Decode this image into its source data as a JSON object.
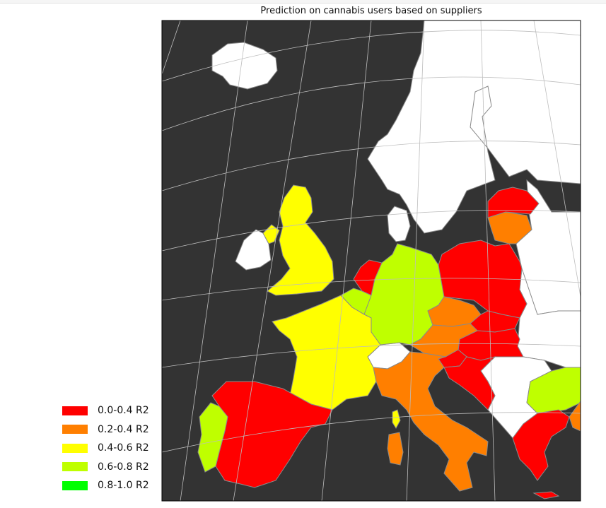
{
  "title": "Prediction on cannabis users based on suppliers",
  "colors": {
    "sea": "#333333",
    "land_nodata": "#ffffff",
    "border": "#8a8a8a",
    "coast": "#000000",
    "graticule": "#bdbdbd"
  },
  "legend": [
    {
      "label": "0.0-0.4 R2",
      "color": "#ff0000"
    },
    {
      "label": "0.2-0.4 R2",
      "color": "#ff7f00"
    },
    {
      "label": "0.4-0.6 R2",
      "color": "#ffff00"
    },
    {
      "label": "0.6-0.8 R2",
      "color": "#bfff00"
    },
    {
      "label": "0.8-1.0 R2",
      "color": "#00ff00"
    }
  ],
  "countries": [
    {
      "name": "Scandinavia",
      "category": "none"
    },
    {
      "name": "Iceland",
      "category": "none"
    },
    {
      "name": "Finland-Russia",
      "category": "none"
    },
    {
      "name": "Eastern Europe",
      "category": "none"
    },
    {
      "name": "Balkans",
      "category": "none"
    },
    {
      "name": "Switzerland",
      "category": "none"
    },
    {
      "name": "United Kingdom",
      "category": "0.4-0.6 R2"
    },
    {
      "name": "Ireland",
      "category": "none"
    },
    {
      "name": "Northern Ireland",
      "category": "0.4-0.6 R2"
    },
    {
      "name": "France",
      "category": "0.4-0.6 R2"
    },
    {
      "name": "Corsica",
      "category": "0.4-0.6 R2"
    },
    {
      "name": "Belgium",
      "category": "0.6-0.8 R2"
    },
    {
      "name": "Netherlands",
      "category": "0.0-0.4 R2"
    },
    {
      "name": "Germany",
      "category": "0.6-0.8 R2"
    },
    {
      "name": "Denmark",
      "category": "none"
    },
    {
      "name": "Poland",
      "category": "0.0-0.4 R2"
    },
    {
      "name": "Lithuania",
      "category": "0.2-0.4 R2"
    },
    {
      "name": "Latvia",
      "category": "0.0-0.4 R2"
    },
    {
      "name": "Czech Republic",
      "category": "0.2-0.4 R2"
    },
    {
      "name": "Slovakia",
      "category": "0.0-0.4 R2"
    },
    {
      "name": "Hungary",
      "category": "0.0-0.4 R2"
    },
    {
      "name": "Austria",
      "category": "0.2-0.4 R2"
    },
    {
      "name": "Slovenia",
      "category": "0.0-0.4 R2"
    },
    {
      "name": "Croatia",
      "category": "0.0-0.4 R2"
    },
    {
      "name": "Italy",
      "category": "0.2-0.4 R2"
    },
    {
      "name": "Sardinia",
      "category": "0.2-0.4 R2"
    },
    {
      "name": "Spain",
      "category": "0.0-0.4 R2"
    },
    {
      "name": "Portugal",
      "category": "0.6-0.8 R2"
    },
    {
      "name": "Bulgaria",
      "category": "0.6-0.8 R2"
    },
    {
      "name": "Greece",
      "category": "0.0-0.4 R2"
    },
    {
      "name": "Turkey",
      "category": "0.2-0.4 R2"
    }
  ]
}
